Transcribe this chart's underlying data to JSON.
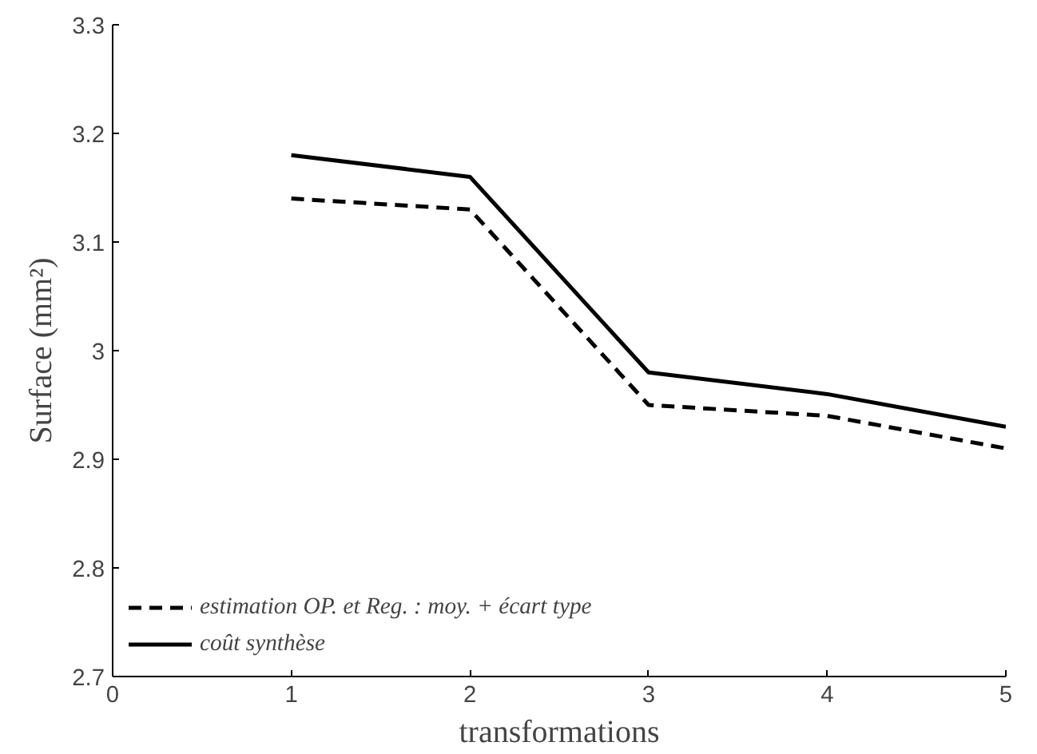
{
  "chart_data": {
    "type": "line",
    "xlabel": "transformations",
    "ylabel": "Surface (mm²)",
    "x": [
      1,
      2,
      3,
      4,
      5
    ],
    "series": [
      {
        "name": "estimation OP. et Reg. : moy. + écart type",
        "color": "#000000",
        "line_style": "dashed",
        "values": [
          3.14,
          3.13,
          2.95,
          2.94,
          2.91
        ]
      },
      {
        "name": "coût synthèse",
        "color": "#000000",
        "line_style": "solid",
        "values": [
          3.18,
          3.16,
          2.98,
          2.96,
          2.93
        ]
      }
    ],
    "xlim": [
      0,
      5
    ],
    "ylim": [
      2.7,
      3.3
    ],
    "xticks": [
      0,
      1,
      2,
      3,
      4,
      5
    ],
    "yticks": [
      2.7,
      2.8,
      2.9,
      3,
      3.1,
      3.2,
      3.3
    ],
    "grid": false,
    "legend": "bottom left",
    "marker": "none"
  }
}
